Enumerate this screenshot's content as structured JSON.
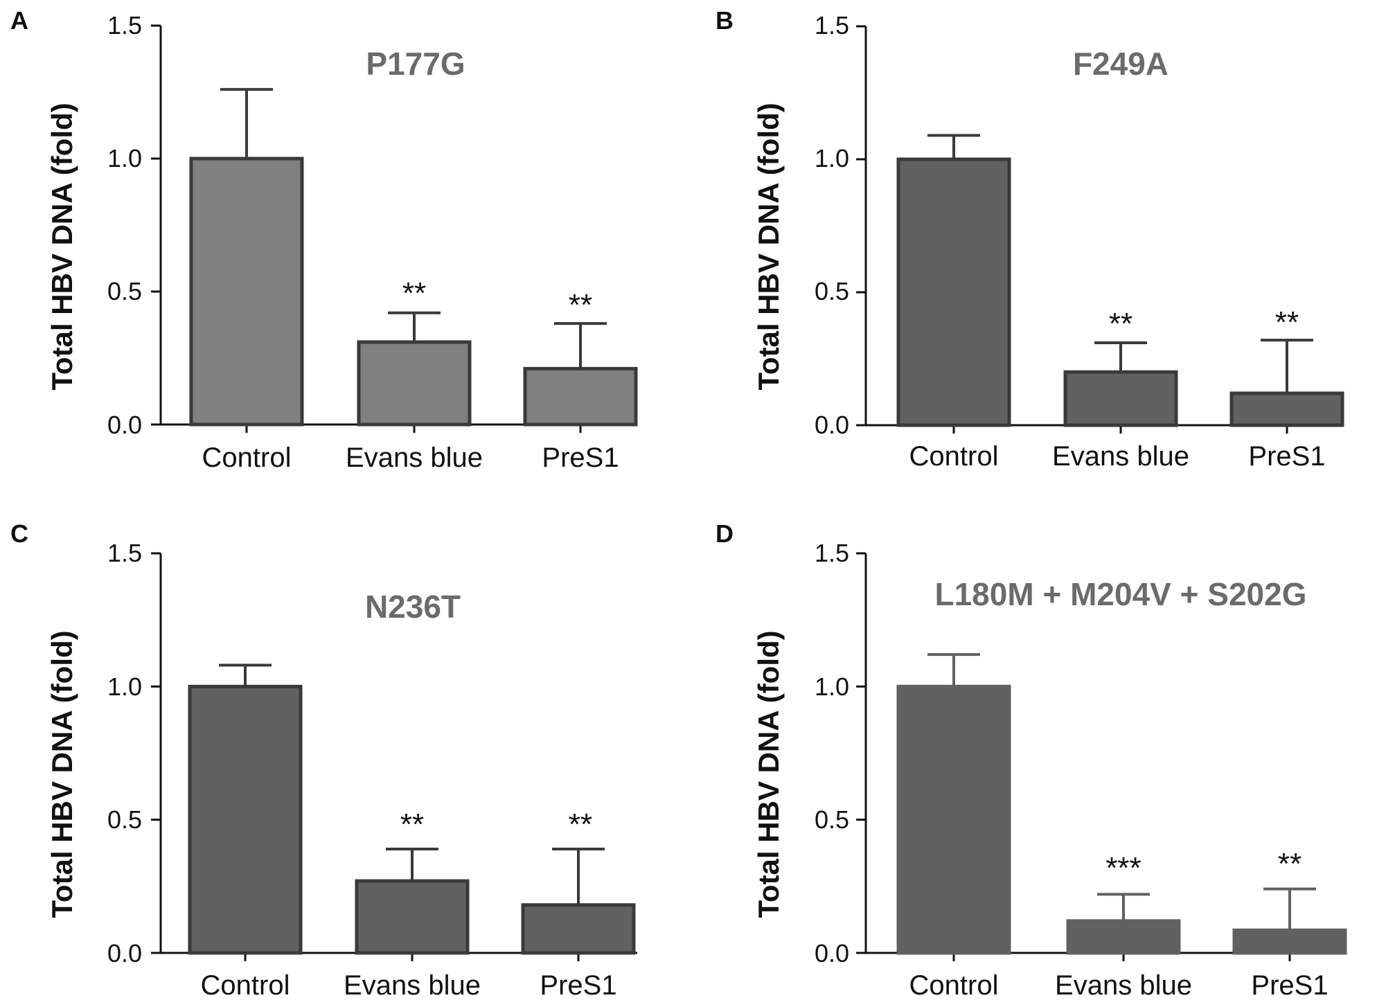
{
  "chart_data": [
    {
      "type": "bar",
      "panel": "A",
      "title": "P177G",
      "ylabel": "Total HBV DNA (fold)",
      "xlabel": "",
      "ylim": [
        0,
        1.5
      ],
      "yticks": [
        "0.0",
        "0.5",
        "1.0",
        "1.5"
      ],
      "categories": [
        "Control",
        "Evans blue",
        "PreS1"
      ],
      "values": [
        1.0,
        0.31,
        0.21
      ],
      "errors": [
        0.26,
        0.11,
        0.17
      ],
      "significance": [
        "",
        "**",
        "**"
      ],
      "colors": {
        "bar": "#808080",
        "edge": "#3a3a3a",
        "title": "#6b6b6b"
      }
    },
    {
      "type": "bar",
      "panel": "B",
      "title": "F249A",
      "ylabel": "Total HBV DNA (fold)",
      "xlabel": "",
      "ylim": [
        0,
        1.5
      ],
      "yticks": [
        "0.0",
        "0.5",
        "1.0",
        "1.5"
      ],
      "categories": [
        "Control",
        "Evans blue",
        "PreS1"
      ],
      "values": [
        1.0,
        0.2,
        0.12
      ],
      "errors": [
        0.09,
        0.11,
        0.2
      ],
      "significance": [
        "",
        "**",
        "**"
      ],
      "colors": {
        "bar": "#616161",
        "edge": "#3a3a3a",
        "title": "#6b6b6b"
      }
    },
    {
      "type": "bar",
      "panel": "C",
      "title": "N236T",
      "ylabel": "Total HBV DNA (fold)",
      "xlabel": "",
      "ylim": [
        0,
        1.5
      ],
      "yticks": [
        "0.0",
        "0.5",
        "1.0",
        "1.5"
      ],
      "categories": [
        "Control",
        "Evans blue",
        "PreS1"
      ],
      "values": [
        1.0,
        0.27,
        0.18
      ],
      "errors": [
        0.08,
        0.12,
        0.21
      ],
      "significance": [
        "",
        "**",
        "**"
      ],
      "colors": {
        "bar": "#616161",
        "edge": "#3a3a3a",
        "title": "#6b6b6b"
      }
    },
    {
      "type": "bar",
      "panel": "D",
      "title": "L180M + M204V + S202G",
      "ylabel": "Total HBV DNA (fold)",
      "xlabel": "",
      "ylim": [
        0,
        1.5
      ],
      "yticks": [
        "0.0",
        "0.5",
        "1.0",
        "1.5"
      ],
      "categories": [
        "Control",
        "Evans blue",
        "PreS1"
      ],
      "values": [
        1.0,
        0.12,
        0.085
      ],
      "errors": [
        0.12,
        0.1,
        0.155
      ],
      "significance": [
        "",
        "***",
        "**"
      ],
      "colors": {
        "bar": "#616161",
        "edge": "#616161",
        "title": "#6b6b6b"
      }
    }
  ]
}
